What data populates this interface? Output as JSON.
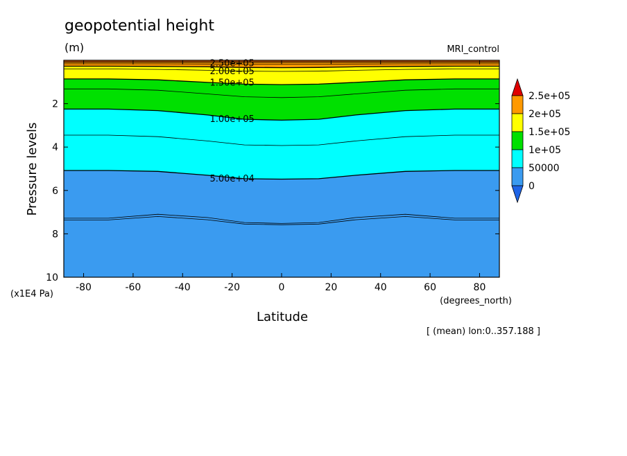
{
  "chart_data": {
    "type": "contour",
    "title": "geopotential height",
    "units": "(m)",
    "experiment": "MRI_control",
    "xlabel": "Latitude",
    "x_units": "(degrees_north)",
    "ylabel": "Pressure levels",
    "y_units": "(x1E4 Pa)",
    "footer": "[ (mean) lon:0..357.188 ]",
    "xlim": [
      -88,
      88
    ],
    "ylim": [
      10,
      0
    ],
    "y_inverted": true,
    "x_ticks": [
      -80,
      -60,
      -40,
      -20,
      0,
      20,
      40,
      60,
      80
    ],
    "x_tick_labels": [
      "-80",
      "-60",
      "-40",
      "-20",
      "0",
      "20",
      "40",
      "60",
      "80"
    ],
    "y_ticks": [
      2,
      4,
      6,
      8,
      10
    ],
    "y_tick_labels": [
      "2",
      "4",
      "6",
      "8",
      "10"
    ],
    "colorbar": {
      "levels": [
        0,
        50000,
        100000,
        150000,
        200000,
        250000
      ],
      "labels": [
        "0",
        "50000",
        "1e+05",
        "1.5e+05",
        "2e+05",
        "2.5e+05"
      ],
      "colors": [
        "#3a9bf0",
        "#00ffff",
        "#00e000",
        "#ffff00",
        "#ff9900"
      ],
      "under_color": "#1e64e6",
      "over_color": "#e00000"
    },
    "contour_labels": [
      "2.50e+05",
      "2.00e+05",
      "1.50e+05",
      "1.00e+05",
      "5.00e+04"
    ],
    "contours": [
      {
        "value": 250000,
        "labeled": true,
        "p": [
          0.08,
          0.08,
          0.08,
          0.08,
          0.08,
          0.08,
          0.08,
          0.08,
          0.08,
          0.08,
          0.08
        ]
      },
      {
        "value": 225000,
        "labeled": false,
        "p": [
          0.16,
          0.16,
          0.16,
          0.17,
          0.18,
          0.18,
          0.18,
          0.17,
          0.16,
          0.16,
          0.16
        ]
      },
      {
        "value": 200000,
        "labeled": true,
        "p": [
          0.27,
          0.27,
          0.28,
          0.3,
          0.33,
          0.34,
          0.33,
          0.3,
          0.28,
          0.27,
          0.27
        ]
      },
      {
        "value": 175000,
        "labeled": false,
        "p": [
          0.4,
          0.4,
          0.42,
          0.46,
          0.5,
          0.51,
          0.5,
          0.46,
          0.42,
          0.4,
          0.4
        ]
      },
      {
        "value": 150000,
        "labeled": true,
        "p": [
          0.86,
          0.86,
          0.9,
          1.02,
          1.1,
          1.12,
          1.1,
          1.02,
          0.9,
          0.86,
          0.86
        ]
      },
      {
        "value": 125000,
        "labeled": false,
        "p": [
          1.32,
          1.32,
          1.38,
          1.55,
          1.68,
          1.72,
          1.68,
          1.55,
          1.38,
          1.32,
          1.32
        ]
      },
      {
        "value": 100000,
        "labeled": true,
        "p": [
          2.25,
          2.25,
          2.32,
          2.52,
          2.72,
          2.76,
          2.72,
          2.52,
          2.32,
          2.25,
          2.25
        ]
      },
      {
        "value": 75000,
        "labeled": false,
        "p": [
          3.45,
          3.45,
          3.52,
          3.72,
          3.9,
          3.93,
          3.9,
          3.72,
          3.52,
          3.45,
          3.45
        ]
      },
      {
        "value": 50000,
        "labeled": true,
        "p": [
          5.08,
          5.08,
          5.12,
          5.3,
          5.46,
          5.48,
          5.46,
          5.3,
          5.12,
          5.08,
          5.08
        ]
      },
      {
        "value": 25000,
        "labeled": false,
        "p": [
          7.28,
          7.28,
          7.1,
          7.25,
          7.48,
          7.52,
          7.48,
          7.25,
          7.1,
          7.28,
          7.28
        ]
      },
      {
        "value": 24000,
        "labeled": false,
        "p": [
          7.36,
          7.36,
          7.2,
          7.35,
          7.55,
          7.58,
          7.55,
          7.35,
          7.2,
          7.36,
          7.36
        ]
      }
    ],
    "contour_lats": [
      -88,
      -70,
      -50,
      -30,
      -15,
      0,
      15,
      30,
      50,
      70,
      88
    ]
  }
}
